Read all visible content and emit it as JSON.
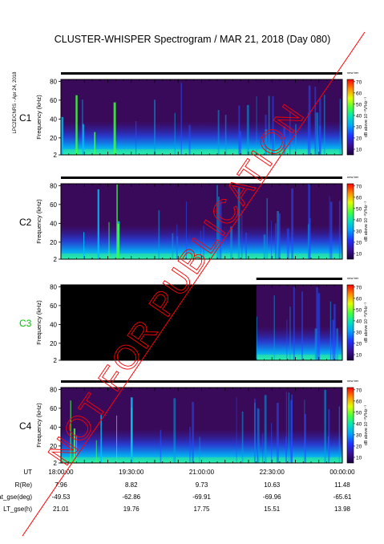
{
  "title": "CLUSTER-WHISPER Spectrogram / MAR 21, 2018 (Day 080)",
  "side_credit": "LPC2E/CNRS - Apr 24, 2018",
  "watermark": "NOT FOR PUBLICATION",
  "colors": {
    "c1": "#000000",
    "c2": "#000000",
    "c3": "#00c000",
    "c4": "#000000",
    "watermark": "#ff0000"
  },
  "axis": {
    "ylabel": "Frequency (kHz)"
  },
  "colorbar": {
    "label": "dB above 10⁻⁸V²Hz⁻¹",
    "tag": "new ber",
    "ticks": [
      "10",
      "20",
      "30",
      "40",
      "50",
      "60",
      "70"
    ],
    "range": [
      5,
      72
    ]
  },
  "ephemeris": {
    "labels": [
      "UT",
      "R(Re)",
      "Lat_gse(deg)",
      "LT_gse(h)"
    ],
    "times": [
      "18:00:00",
      "19:30:00",
      "21:00:00",
      "22:30:00",
      "00:00:00"
    ],
    "r": [
      "7.96",
      "8.82",
      "9.73",
      "10.63",
      "11.48"
    ],
    "lat": [
      "-49.53",
      "-62.86",
      "-69.91",
      "-69.96",
      "-65.61"
    ],
    "lt": [
      "21.01",
      "19.76",
      "17.75",
      "15.51",
      "13.98"
    ]
  },
  "chart_data": [
    {
      "type": "heatmap",
      "panel": "C1",
      "xlabel": "",
      "ylabel": "Frequency (kHz)",
      "xlim": [
        "18:00:00",
        "00:00:00"
      ],
      "ylim": [
        2,
        82
      ],
      "y_ticks": [
        2,
        20,
        40,
        60,
        80
      ],
      "data_coverage": [
        "18:00:00",
        "00:00:00"
      ],
      "zlim": [
        5,
        72
      ],
      "z_unit": "dB above 10^-8 V^2 Hz^-1"
    },
    {
      "type": "heatmap",
      "panel": "C2",
      "xlabel": "",
      "ylabel": "Frequency (kHz)",
      "xlim": [
        "18:00:00",
        "00:00:00"
      ],
      "ylim": [
        2,
        82
      ],
      "y_ticks": [
        2,
        20,
        40,
        60,
        80
      ],
      "data_coverage": [
        "18:00:00",
        "00:00:00"
      ],
      "zlim": [
        5,
        72
      ],
      "z_unit": "dB above 10^-8 V^2 Hz^-1"
    },
    {
      "type": "heatmap",
      "panel": "C3",
      "xlabel": "",
      "ylabel": "Frequency (kHz)",
      "xlim": [
        "18:00:00",
        "00:00:00"
      ],
      "ylim": [
        2,
        82
      ],
      "y_ticks": [
        2,
        20,
        40,
        60,
        80
      ],
      "data_coverage": [
        "22:10:00",
        "00:00:00"
      ],
      "zlim": [
        5,
        72
      ],
      "z_unit": "dB above 10^-8 V^2 Hz^-1"
    },
    {
      "type": "heatmap",
      "panel": "C4",
      "xlabel": "",
      "ylabel": "Frequency (kHz)",
      "xlim": [
        "18:00:00",
        "00:00:00"
      ],
      "ylim": [
        2,
        82
      ],
      "y_ticks": [
        2,
        20,
        40,
        60,
        80
      ],
      "data_coverage": [
        "18:00:00",
        "00:00:00"
      ],
      "zlim": [
        5,
        72
      ],
      "z_unit": "dB above 10^-8 V^2 Hz^-1"
    }
  ]
}
